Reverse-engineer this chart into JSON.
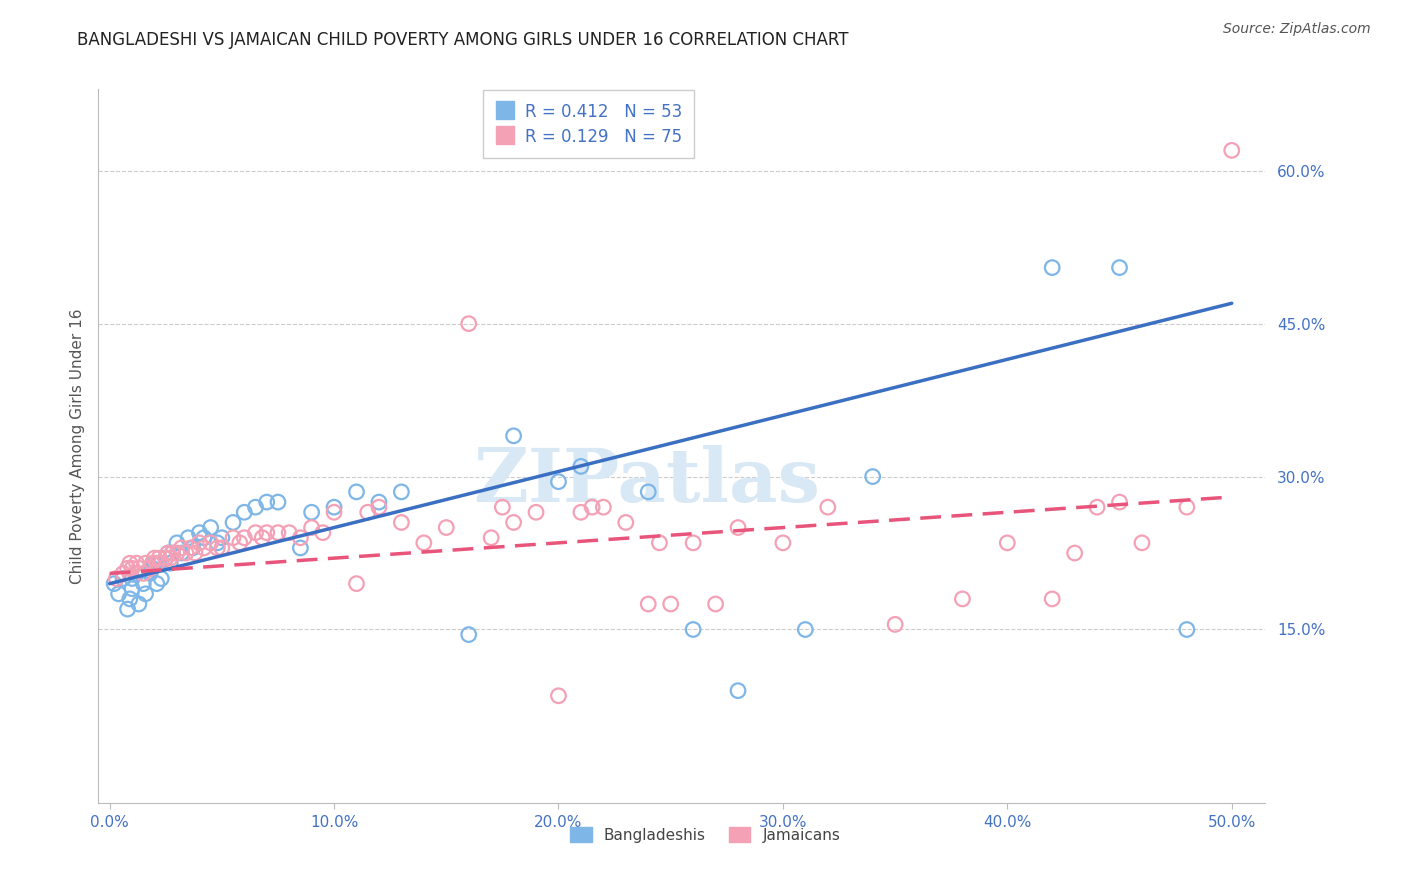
{
  "title": "BANGLADESHI VS JAMAICAN CHILD POVERTY AMONG GIRLS UNDER 16 CORRELATION CHART",
  "source": "Source: ZipAtlas.com",
  "ylabel": "Child Poverty Among Girls Under 16",
  "xlim": [
    -0.005,
    0.515
  ],
  "ylim": [
    -0.02,
    0.68
  ],
  "xticks": [
    0.0,
    0.1,
    0.2,
    0.3,
    0.4,
    0.5
  ],
  "xtick_labels": [
    "0.0%",
    "10.0%",
    "20.0%",
    "30.0%",
    "40.0%",
    "50.0%"
  ],
  "yticks_right": [
    0.15,
    0.3,
    0.45,
    0.6
  ],
  "ytick_labels_right": [
    "15.0%",
    "30.0%",
    "45.0%",
    "60.0%"
  ],
  "blue_R": 0.412,
  "blue_N": 53,
  "pink_R": 0.129,
  "pink_N": 75,
  "blue_line_start_x": 0.0,
  "blue_line_start_y": 0.195,
  "blue_line_end_x": 0.5,
  "blue_line_end_y": 0.47,
  "pink_line_start_x": 0.0,
  "pink_line_start_y": 0.205,
  "pink_line_end_x": 0.5,
  "pink_line_end_y": 0.28,
  "blue_scatter_color": "#7EB6E8",
  "pink_scatter_color": "#F4A0B5",
  "blue_line_color": "#3B6FC4",
  "pink_line_color": "#E8547A",
  "watermark": "ZIPatlas",
  "watermark_color": "#D8E8F5",
  "legend_label_blue": "Bangladeshis",
  "legend_label_pink": "Jamaicans",
  "title_fontsize": 12,
  "blue_scatter_x": [
    0.002,
    0.004,
    0.006,
    0.008,
    0.009,
    0.01,
    0.01,
    0.012,
    0.013,
    0.015,
    0.016,
    0.018,
    0.019,
    0.02,
    0.021,
    0.022,
    0.023,
    0.025,
    0.026,
    0.027,
    0.028,
    0.03,
    0.032,
    0.035,
    0.037,
    0.04,
    0.042,
    0.045,
    0.048,
    0.05,
    0.055,
    0.06,
    0.065,
    0.07,
    0.075,
    0.085,
    0.09,
    0.1,
    0.11,
    0.12,
    0.13,
    0.16,
    0.18,
    0.2,
    0.21,
    0.24,
    0.26,
    0.28,
    0.31,
    0.34,
    0.42,
    0.45,
    0.48
  ],
  "blue_scatter_y": [
    0.195,
    0.185,
    0.2,
    0.17,
    0.18,
    0.19,
    0.2,
    0.205,
    0.175,
    0.195,
    0.185,
    0.205,
    0.21,
    0.215,
    0.195,
    0.215,
    0.2,
    0.22,
    0.225,
    0.215,
    0.225,
    0.235,
    0.225,
    0.24,
    0.23,
    0.245,
    0.24,
    0.25,
    0.235,
    0.24,
    0.255,
    0.265,
    0.27,
    0.275,
    0.275,
    0.23,
    0.265,
    0.27,
    0.285,
    0.275,
    0.285,
    0.145,
    0.34,
    0.295,
    0.31,
    0.285,
    0.15,
    0.09,
    0.15,
    0.3,
    0.505,
    0.505,
    0.15
  ],
  "pink_scatter_x": [
    0.003,
    0.006,
    0.008,
    0.009,
    0.01,
    0.012,
    0.013,
    0.015,
    0.016,
    0.018,
    0.019,
    0.02,
    0.021,
    0.022,
    0.023,
    0.025,
    0.026,
    0.027,
    0.028,
    0.03,
    0.032,
    0.034,
    0.036,
    0.038,
    0.04,
    0.042,
    0.045,
    0.048,
    0.05,
    0.055,
    0.058,
    0.06,
    0.065,
    0.068,
    0.07,
    0.075,
    0.08,
    0.085,
    0.09,
    0.095,
    0.1,
    0.11,
    0.115,
    0.12,
    0.13,
    0.14,
    0.15,
    0.16,
    0.17,
    0.175,
    0.18,
    0.19,
    0.2,
    0.21,
    0.215,
    0.22,
    0.23,
    0.24,
    0.245,
    0.25,
    0.26,
    0.27,
    0.28,
    0.3,
    0.32,
    0.35,
    0.38,
    0.4,
    0.42,
    0.43,
    0.44,
    0.45,
    0.46,
    0.48,
    0.5
  ],
  "pink_scatter_y": [
    0.2,
    0.205,
    0.21,
    0.215,
    0.21,
    0.215,
    0.21,
    0.205,
    0.215,
    0.21,
    0.215,
    0.22,
    0.215,
    0.22,
    0.215,
    0.22,
    0.225,
    0.22,
    0.225,
    0.225,
    0.23,
    0.225,
    0.23,
    0.225,
    0.235,
    0.23,
    0.235,
    0.23,
    0.23,
    0.24,
    0.235,
    0.24,
    0.245,
    0.24,
    0.245,
    0.245,
    0.245,
    0.24,
    0.25,
    0.245,
    0.265,
    0.195,
    0.265,
    0.27,
    0.255,
    0.235,
    0.25,
    0.45,
    0.24,
    0.27,
    0.255,
    0.265,
    0.085,
    0.265,
    0.27,
    0.27,
    0.255,
    0.175,
    0.235,
    0.175,
    0.235,
    0.175,
    0.25,
    0.235,
    0.27,
    0.155,
    0.18,
    0.235,
    0.18,
    0.225,
    0.27,
    0.275,
    0.235,
    0.27,
    0.62
  ]
}
